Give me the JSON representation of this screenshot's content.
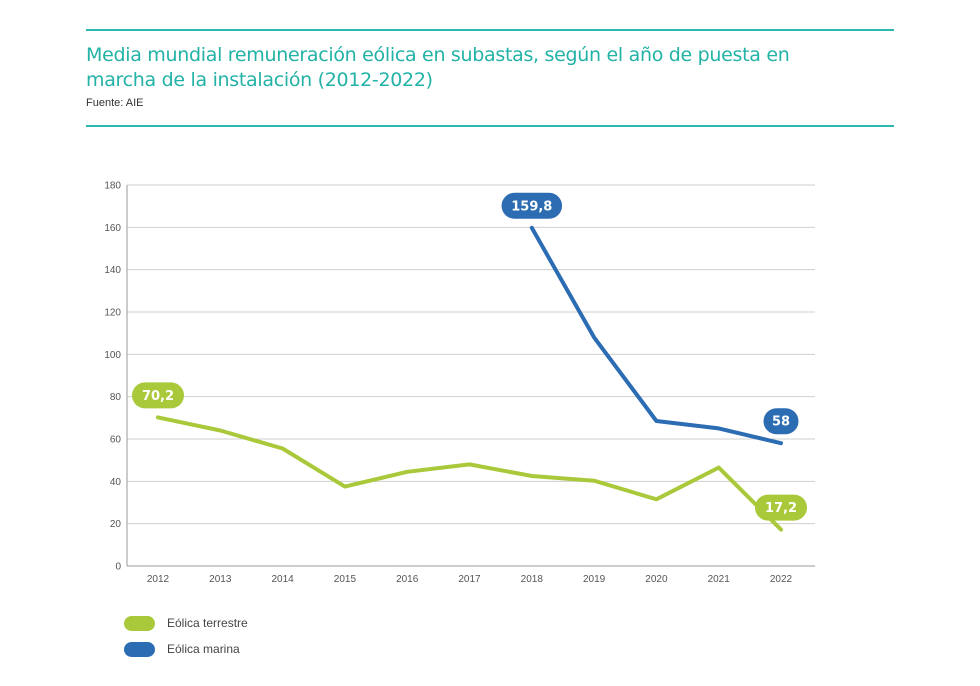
{
  "header": {
    "title": "Media mundial remuneración eólica en subastas, según el año de puesta en marcha de la instalación (2012-2022)",
    "source": "Fuente: AIE"
  },
  "chart_data": {
    "type": "line",
    "title": "Media mundial remuneración eólica en subastas, según el año de puesta en marcha de la instalación (2012-2022)",
    "source": "Fuente: AIE",
    "xlabel": "",
    "ylabel": "",
    "categories": [
      "2012",
      "2013",
      "2014",
      "2015",
      "2016",
      "2017",
      "2018",
      "2019",
      "2020",
      "2021",
      "2022"
    ],
    "ylim": [
      0,
      180
    ],
    "yticks": [
      0,
      20,
      40,
      60,
      80,
      100,
      120,
      140,
      160,
      180
    ],
    "grid": true,
    "legend_position": "bottom-left",
    "series": [
      {
        "name": "Eólica terrestre",
        "color": "#a9c93b",
        "values": [
          70.2,
          64,
          55.5,
          37.5,
          44.5,
          48,
          42.5,
          40.3,
          31.5,
          46.5,
          17.2
        ],
        "labels": [
          {
            "index": 0,
            "text": "70,2"
          },
          {
            "index": 10,
            "text": "17,2"
          }
        ]
      },
      {
        "name": "Eólica marina",
        "color": "#2b6cb3",
        "values": [
          null,
          null,
          null,
          null,
          null,
          null,
          159.8,
          108,
          68.5,
          65,
          58
        ],
        "labels": [
          {
            "index": 6,
            "text": "159,8"
          },
          {
            "index": 10,
            "text": "58"
          }
        ]
      }
    ]
  }
}
